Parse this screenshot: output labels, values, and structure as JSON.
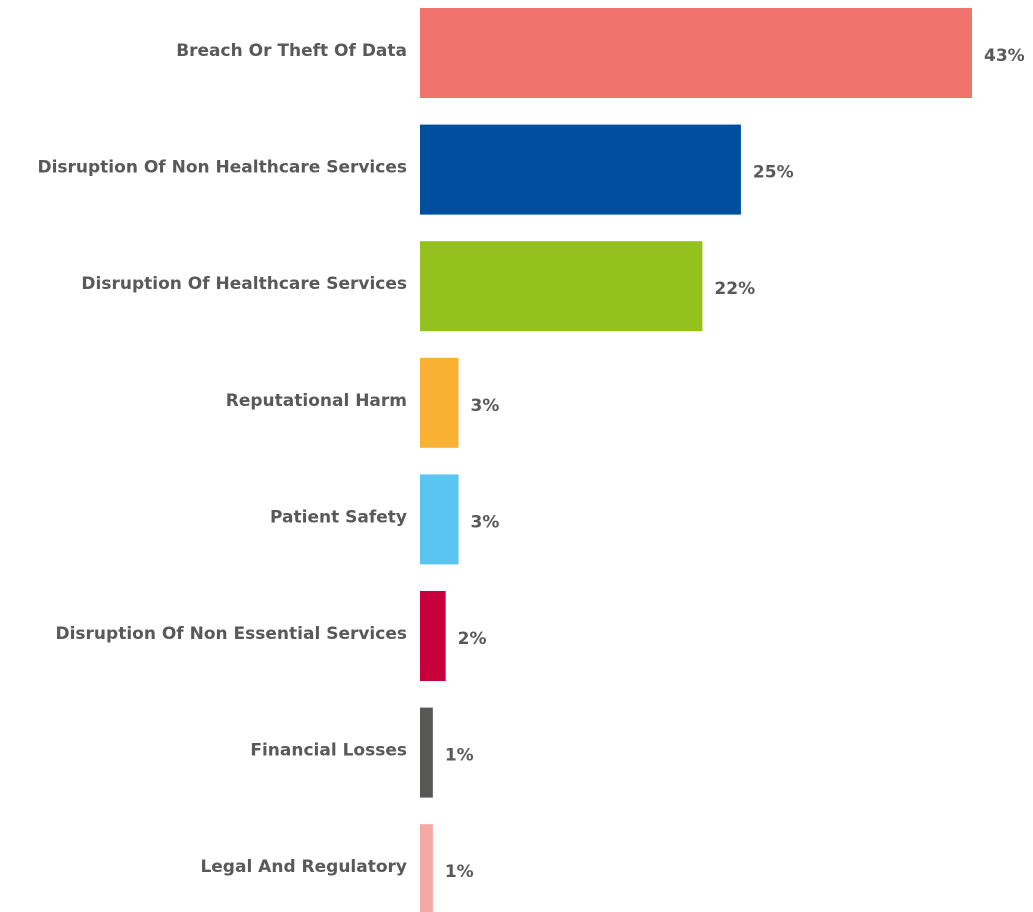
{
  "chart_data": {
    "type": "bar",
    "orientation": "horizontal",
    "categories": [
      "Breach Or Theft Of Data",
      "Disruption Of Non Healthcare Services",
      "Disruption Of Healthcare Services",
      "Reputational Harm",
      "Patient Safety",
      "Disruption Of Non Essential Services",
      "Financial Losses",
      "Legal And Regulatory"
    ],
    "values": [
      43,
      25,
      22,
      3,
      3,
      2,
      1,
      1
    ],
    "value_labels": [
      "43%",
      "25%",
      "22%",
      "3%",
      "3%",
      "2%",
      "1%",
      "1%"
    ],
    "colors": [
      "#f0736d",
      "#004f9f",
      "#95c11f",
      "#f8b133",
      "#5bc5f2",
      "#c8003c",
      "#575756",
      "#f4a9a4"
    ]
  }
}
